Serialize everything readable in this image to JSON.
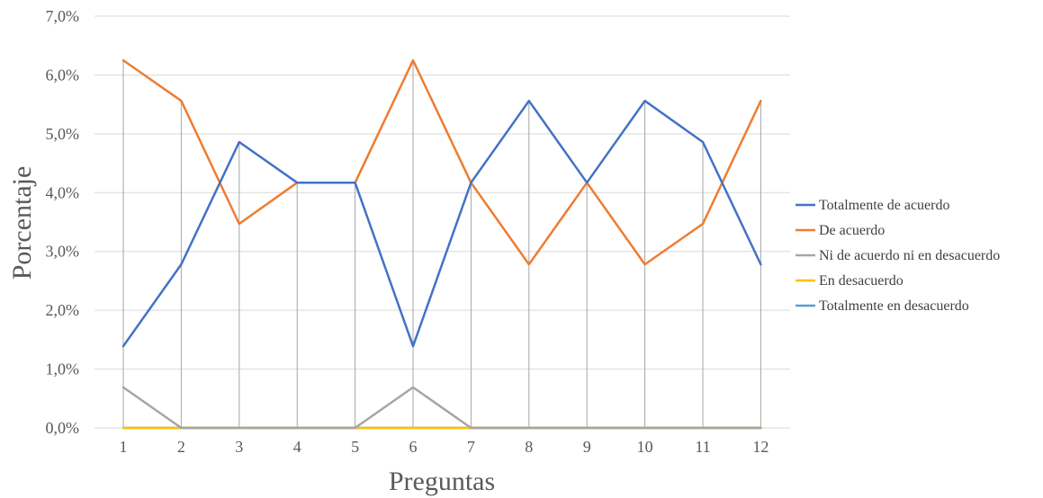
{
  "chart_data": {
    "type": "line",
    "title": "",
    "xlabel": "Preguntas",
    "ylabel": "Porcentaje",
    "categories": [
      "1",
      "2",
      "3",
      "4",
      "5",
      "6",
      "7",
      "8",
      "9",
      "10",
      "11",
      "12"
    ],
    "ylim": [
      0,
      7
    ],
    "yticks": [
      "0,0%",
      "1,0%",
      "2,0%",
      "3,0%",
      "4,0%",
      "5,0%",
      "6,0%",
      "7,0%"
    ],
    "grid": "horizontal gridlines, vertical drop lines",
    "legend_position": "right",
    "series": [
      {
        "name": "Totalmente de acuerdo",
        "color": "#4472C4",
        "values": [
          1.39,
          2.78,
          4.86,
          4.17,
          4.17,
          1.39,
          4.17,
          5.56,
          4.17,
          5.56,
          4.86,
          2.78
        ]
      },
      {
        "name": "De acuerdo",
        "color": "#ED7D31",
        "values": [
          6.25,
          5.56,
          3.47,
          4.17,
          4.17,
          6.25,
          4.17,
          2.78,
          4.17,
          2.78,
          3.47,
          5.56
        ]
      },
      {
        "name": "Ni de acuerdo ni en desacuerdo",
        "color": "#A5A5A5",
        "values": [
          0.69,
          0,
          0,
          0,
          0,
          0.69,
          0,
          0,
          0,
          0,
          0,
          0
        ]
      },
      {
        "name": "En desacuerdo",
        "color": "#FFC000",
        "values": [
          0,
          0,
          0,
          0,
          0,
          0,
          0,
          0,
          0,
          0,
          0,
          0
        ]
      },
      {
        "name": "Totalmente en desacuerdo",
        "color": "#5B9BD5",
        "values": [
          0,
          0,
          0,
          0,
          0,
          0,
          0,
          0,
          0,
          0,
          0,
          0
        ]
      }
    ]
  }
}
